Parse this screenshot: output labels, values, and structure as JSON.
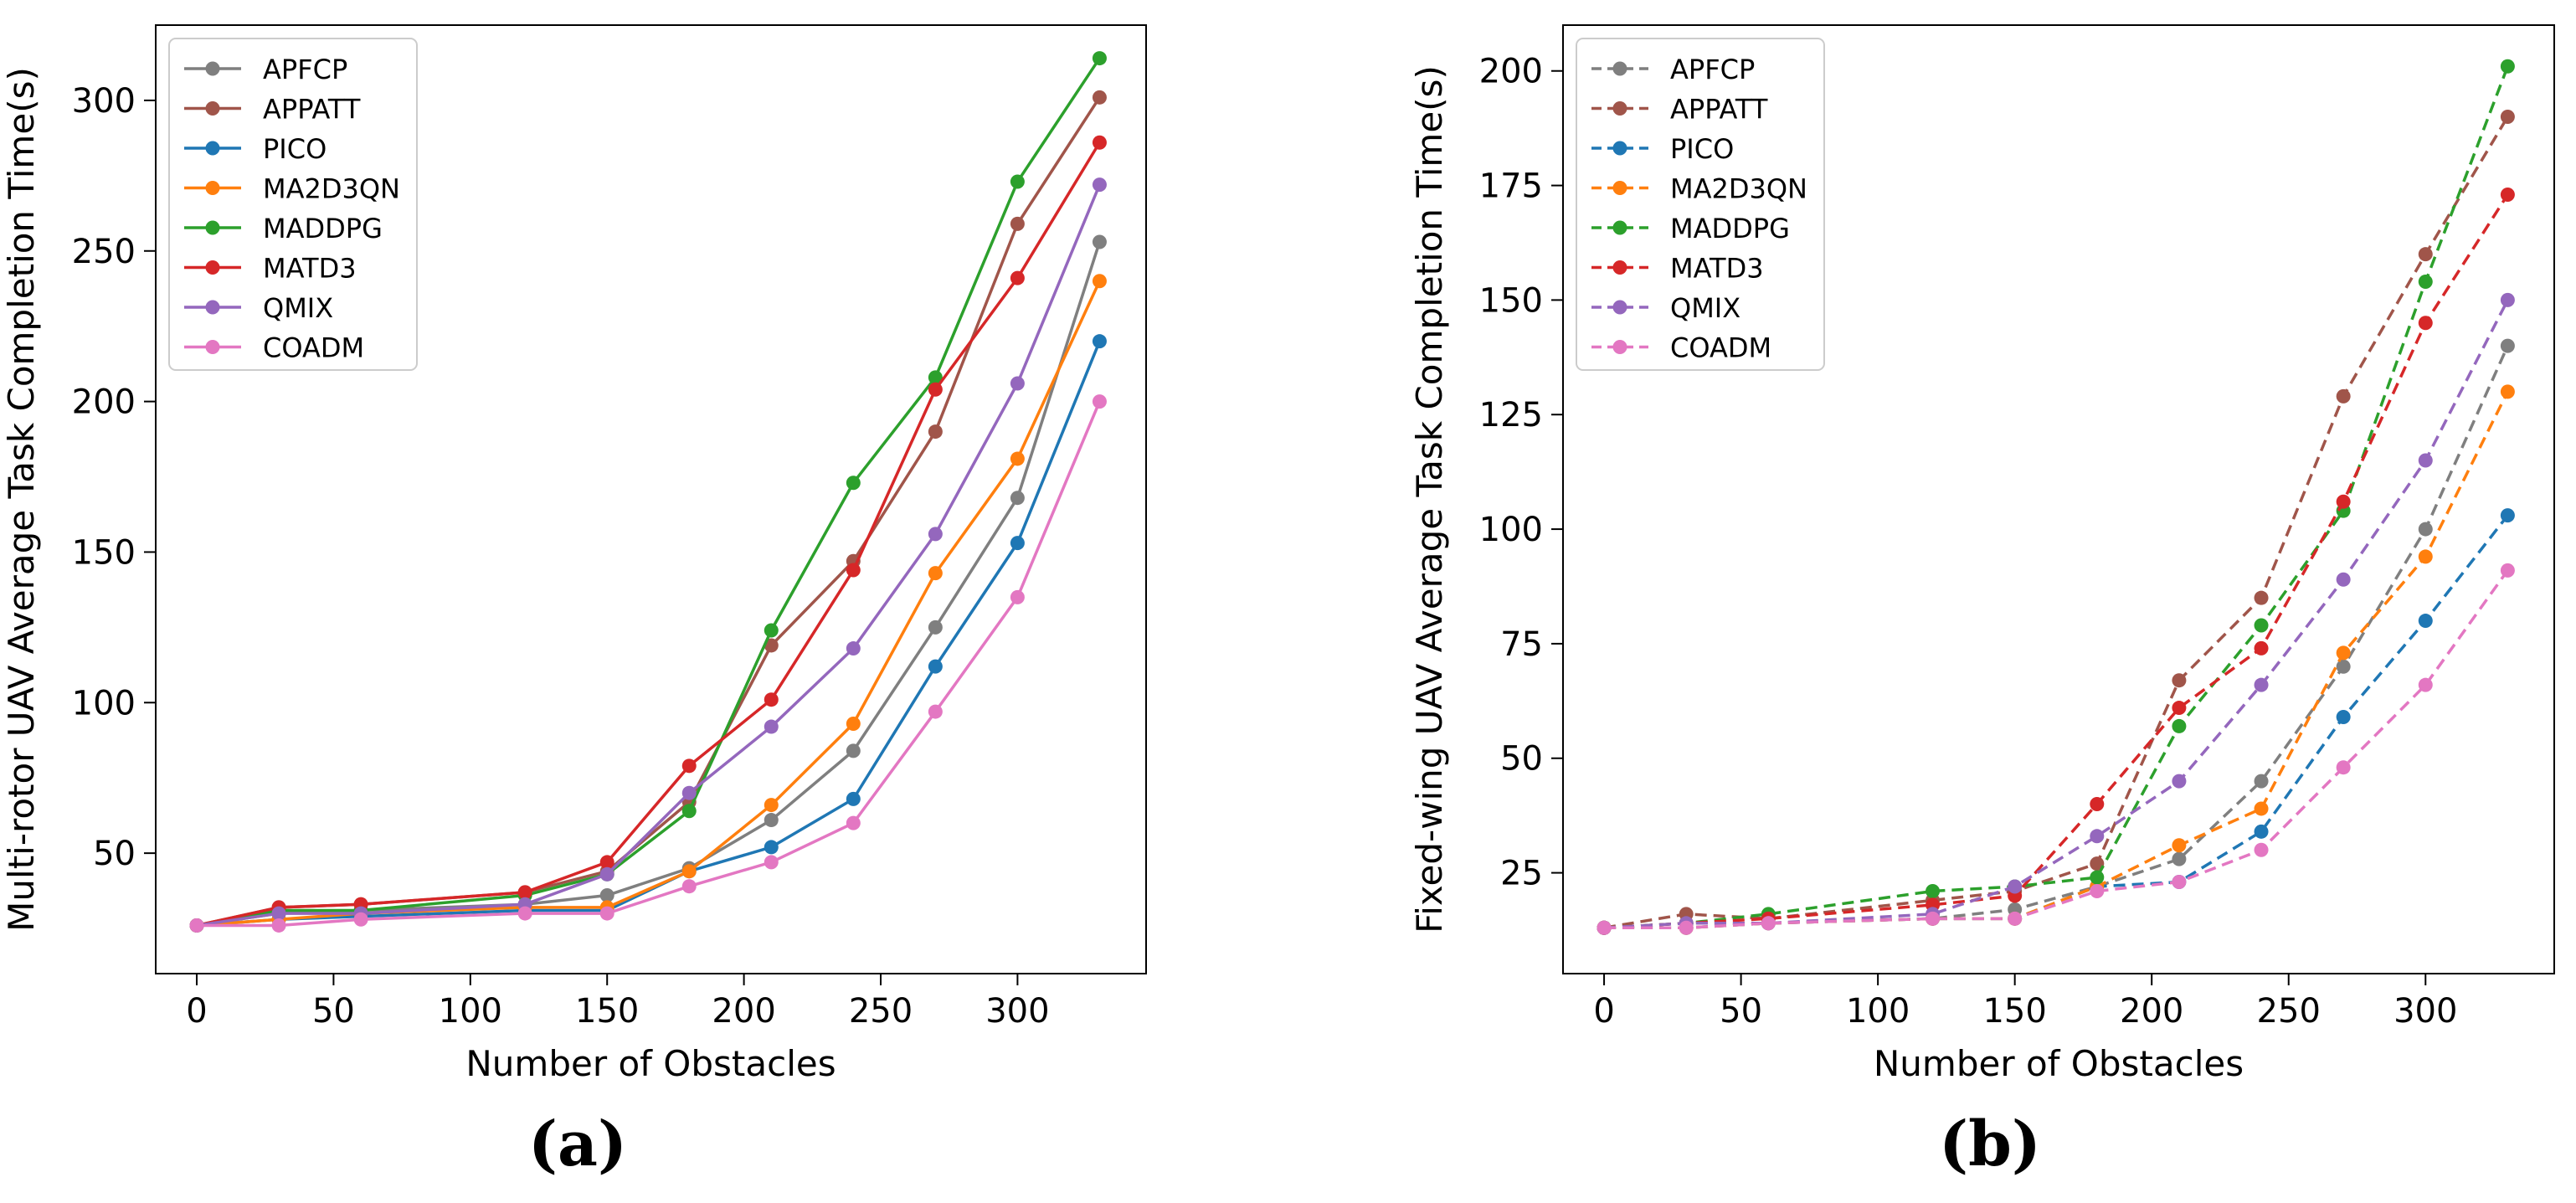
{
  "x_ticks": [
    0,
    50,
    100,
    150,
    200,
    250,
    300
  ],
  "series_colors": {
    "APFCP": "#7f7f7f",
    "APPATT": "#a0554a",
    "PICO": "#1f77b4",
    "MA2D3QN": "#ff7f0e",
    "MADDPG": "#2ca02c",
    "MATD3": "#d62728",
    "QMIX": "#9467bd",
    "COADM": "#e377c2"
  },
  "chart_data": [
    {
      "type": "line",
      "caption": "(a)",
      "xlabel": "Number of Obstacles",
      "ylabel": "Multi-rotor UAV Average Task Completion Time(s)",
      "xlim": [
        -15,
        347
      ],
      "ylim": [
        10,
        325
      ],
      "y_ticks": [
        50,
        100,
        150,
        200,
        250,
        300
      ],
      "line_style": "solid",
      "grid": false,
      "legend_position": "top-left",
      "x": [
        0,
        30,
        60,
        120,
        150,
        180,
        210,
        240,
        270,
        300,
        330
      ],
      "series": [
        {
          "name": "APFCP",
          "values": [
            26,
            30,
            31,
            33,
            36,
            45,
            61,
            84,
            125,
            168,
            253
          ]
        },
        {
          "name": "APPATT",
          "values": [
            26,
            32,
            33,
            37,
            44,
            67,
            119,
            147,
            190,
            259,
            301
          ]
        },
        {
          "name": "PICO",
          "values": [
            26,
            28,
            29,
            31,
            31,
            44,
            52,
            68,
            112,
            153,
            220
          ]
        },
        {
          "name": "MA2D3QN",
          "values": [
            26,
            28,
            30,
            32,
            32,
            44,
            66,
            93,
            143,
            181,
            240
          ]
        },
        {
          "name": "MADDPG",
          "values": [
            26,
            31,
            31,
            36,
            43,
            64,
            124,
            173,
            208,
            273,
            314
          ]
        },
        {
          "name": "MATD3",
          "values": [
            26,
            32,
            33,
            37,
            47,
            79,
            101,
            144,
            204,
            241,
            286
          ]
        },
        {
          "name": "QMIX",
          "values": [
            26,
            30,
            30,
            33,
            43,
            70,
            92,
            118,
            156,
            206,
            272
          ]
        },
        {
          "name": "COADM",
          "values": [
            26,
            26,
            28,
            30,
            30,
            39,
            47,
            60,
            97,
            135,
            200
          ]
        }
      ]
    },
    {
      "type": "line",
      "caption": "(b)",
      "xlabel": "Number of Obstacles",
      "ylabel": "Fixed-wing UAV Average Task Completion Time(s)",
      "xlim": [
        -15,
        347
      ],
      "ylim": [
        3,
        210
      ],
      "y_ticks": [
        25,
        50,
        75,
        100,
        125,
        150,
        175,
        200
      ],
      "line_style": "dashed",
      "grid": false,
      "legend_position": "top-left",
      "x": [
        0,
        30,
        60,
        120,
        150,
        180,
        210,
        240,
        270,
        300,
        330
      ],
      "series": [
        {
          "name": "APFCP",
          "values": [
            13,
            14,
            14,
            15,
            17,
            22,
            28,
            45,
            70,
            100,
            140
          ]
        },
        {
          "name": "APPATT",
          "values": [
            13,
            16,
            15,
            19,
            21,
            27,
            67,
            85,
            129,
            160,
            190
          ]
        },
        {
          "name": "PICO",
          "values": [
            13,
            13,
            14,
            15,
            15,
            22,
            23,
            34,
            59,
            80,
            103
          ]
        },
        {
          "name": "MA2D3QN",
          "values": [
            13,
            13,
            14,
            15,
            15,
            22,
            31,
            39,
            73,
            94,
            130
          ]
        },
        {
          "name": "MADDPG",
          "values": [
            13,
            14,
            16,
            21,
            22,
            24,
            57,
            79,
            104,
            154,
            201
          ]
        },
        {
          "name": "MATD3",
          "values": [
            13,
            14,
            15,
            18,
            20,
            40,
            61,
            74,
            106,
            145,
            173
          ]
        },
        {
          "name": "QMIX",
          "values": [
            13,
            14,
            14,
            16,
            22,
            33,
            45,
            66,
            89,
            115,
            150
          ]
        },
        {
          "name": "COADM",
          "values": [
            13,
            13,
            14,
            15,
            15,
            21,
            23,
            30,
            48,
            66,
            91
          ]
        }
      ]
    }
  ]
}
